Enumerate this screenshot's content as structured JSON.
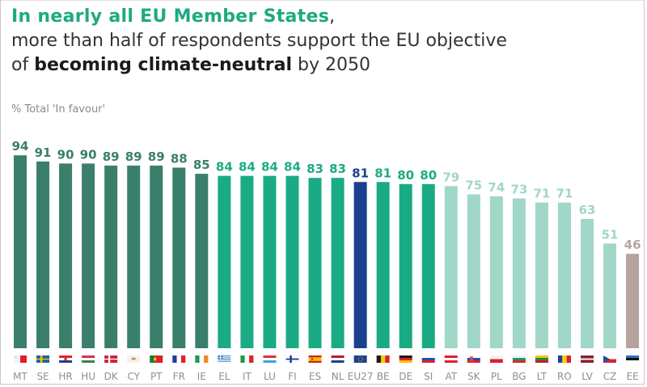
{
  "title": {
    "line1_highlight": "In nearly all EU Member States",
    "line1_rest": ",",
    "line2": "more than half of respondents support the EU objective",
    "line3_prefix": "of ",
    "line3_bold": "becoming climate-neutral",
    "line3_suffix": " by 2050"
  },
  "colors": {
    "title_green": "#1fa982",
    "top_group": "#3a7f6b",
    "mid_group": "#1aab84",
    "low_group": "#a0d7c8",
    "eu_average": "#1b3f8e",
    "lowest": "#b5a49d"
  },
  "chart_data": {
    "type": "bar",
    "title": "In nearly all EU Member States, more than half of respondents support the EU objective of becoming climate-neutral by 2050",
    "ylabel": "% Total 'In favour'",
    "xlabel": "",
    "ylim": [
      0,
      100
    ],
    "grid": false,
    "legend": "none",
    "categories": [
      "MT",
      "SE",
      "HR",
      "HU",
      "DK",
      "CY",
      "PT",
      "FR",
      "IE",
      "EL",
      "IT",
      "LU",
      "FI",
      "ES",
      "NL",
      "EU27",
      "BE",
      "DE",
      "SI",
      "AT",
      "SK",
      "PL",
      "BG",
      "LT",
      "RO",
      "LV",
      "CZ",
      "EE"
    ],
    "values": [
      94,
      91,
      90,
      90,
      89,
      89,
      89,
      88,
      85,
      84,
      84,
      84,
      84,
      83,
      83,
      81,
      81,
      80,
      80,
      79,
      75,
      74,
      73,
      71,
      71,
      63,
      51,
      46
    ],
    "groups": [
      "top",
      "top",
      "top",
      "top",
      "top",
      "top",
      "top",
      "top",
      "top",
      "mid",
      "mid",
      "mid",
      "mid",
      "mid",
      "mid",
      "eu",
      "mid",
      "mid",
      "mid",
      "low",
      "low",
      "low",
      "low",
      "low",
      "low",
      "low",
      "low",
      "lowest"
    ],
    "flags": [
      "malta-flag",
      "sweden-flag",
      "croatia-flag",
      "hungary-flag",
      "denmark-flag",
      "cyprus-flag",
      "portugal-flag",
      "france-flag",
      "ireland-flag",
      "greece-flag",
      "italy-flag",
      "luxembourg-flag",
      "finland-flag",
      "spain-flag",
      "netherlands-flag",
      "eu-flag",
      "belgium-flag",
      "germany-flag",
      "slovenia-flag",
      "austria-flag",
      "slovakia-flag",
      "poland-flag",
      "bulgaria-flag",
      "lithuania-flag",
      "romania-flag",
      "latvia-flag",
      "czechia-flag",
      "estonia-flag"
    ]
  }
}
